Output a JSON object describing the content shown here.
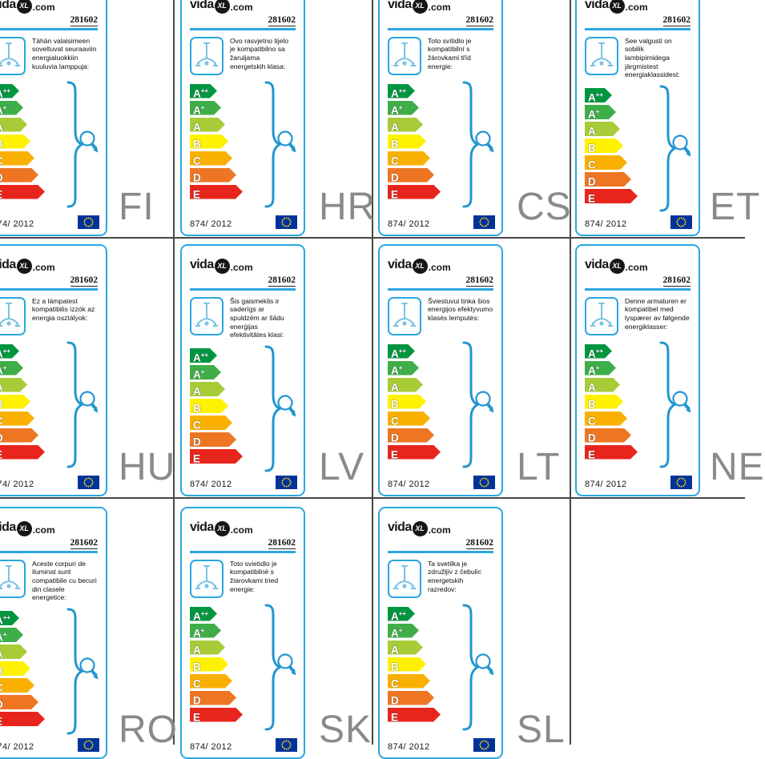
{
  "brand": {
    "name_prefix": "vida",
    "badge": "XL",
    "name_suffix": ".com"
  },
  "product_code": "281602",
  "regulation": "874/ 2012",
  "colors": {
    "card_border": "#2aa7df",
    "accent_blue": "#2196d0",
    "chandelier_blue": "#7ac2e5",
    "grid_line": "#474747",
    "language_code_gray": "#8a8a8a",
    "eu_flag_blue": "#003399",
    "eu_star_yellow": "#ffd617"
  },
  "energy_classes": [
    {
      "grade": "A",
      "sup": "++",
      "color": "#009640",
      "width": 34
    },
    {
      "grade": "A",
      "sup": "+",
      "color": "#3fae49",
      "width": 39
    },
    {
      "grade": "A",
      "sup": "",
      "color": "#a8cb38",
      "width": 44
    },
    {
      "grade": "B",
      "sup": "",
      "color": "#fef200",
      "width": 48
    },
    {
      "grade": "C",
      "sup": "",
      "color": "#f9b000",
      "width": 53
    },
    {
      "grade": "D",
      "sup": "",
      "color": "#ee7623",
      "width": 58
    },
    {
      "grade": "E",
      "sup": "",
      "color": "#e8251d",
      "width": 66
    }
  ],
  "cards": [
    {
      "lang": "FI",
      "description": "Tähän valaisimeen soveltuvat seuraaviin energialuokkiin kuuluvia lamppuja:"
    },
    {
      "lang": "HR",
      "description": "Ovo rasvjetno tijelo je kompatibilno sa žaruljama energetskih klasa:"
    },
    {
      "lang": "CS",
      "description": "Toto svítidlo je kompatibilní s žárovkami tříd energie:"
    },
    {
      "lang": "ET",
      "description": "See valgusti on sobilik lambipirnidega järgmistest energiaklassidest:"
    },
    {
      "lang": "HU",
      "description": "Ez a lámpatest kompatibilis izzók az energia osztályok:"
    },
    {
      "lang": "LV",
      "description": "Šis gaismeklis ir saderīgs ar spuldzēm ar šādu enerģijas efektivitātes klasi:"
    },
    {
      "lang": "LT",
      "description": "Šviestuvui tinka šios energijos efektyvumo klasės lemputės:"
    },
    {
      "lang": "NE",
      "description": "Denne armaturen er kompatibel med lyspærer av følgende energiklasser:"
    },
    {
      "lang": "RO",
      "description": "Aceste corpuri de iluminat sunt compatibile cu becuri din clasele energetice:"
    },
    {
      "lang": "SK",
      "description": "Toto svietidlo je kompatibilné s žiarovkami tried energie:"
    },
    {
      "lang": "SL",
      "description": "Ta svetilka je združljiv z čebulic energetskih razredov:"
    },
    {
      "lang": "",
      "description": "",
      "empty": true
    }
  ]
}
